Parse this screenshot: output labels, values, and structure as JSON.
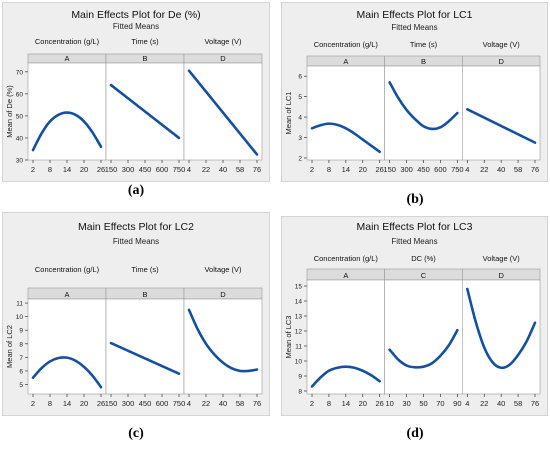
{
  "colors": {
    "background": "#eeeeee",
    "plot_bg": "#ffffff",
    "line": "#1550a0",
    "header": "#dcdcdc",
    "frame": "#bbbbbb"
  },
  "panel_labels": [
    "(a)",
    "(b)",
    "(c)",
    "(d)"
  ],
  "chart_data": [
    {
      "type": "line",
      "title": "Main Effects Plot for De (%)",
      "subtitle": "Fitted Means",
      "ylabel": "Mean of De (%)",
      "ylim": [
        30,
        74
      ],
      "yticks": [
        30,
        40,
        50,
        60,
        70
      ],
      "factors": [
        {
          "name": "Concentration (g/L)",
          "letter": "A",
          "xlim": [
            2,
            26
          ],
          "xticks": [
            "2",
            "8",
            "14",
            "20",
            "26"
          ],
          "x": [
            2,
            5,
            8,
            11,
            14,
            17,
            20,
            23,
            26
          ],
          "y": [
            34.5,
            42,
            47.5,
            50.5,
            51.5,
            50.5,
            47.5,
            42.5,
            36
          ]
        },
        {
          "name": "Time (s)",
          "letter": "B",
          "xlim": [
            150,
            750
          ],
          "xticks": [
            "150",
            "300",
            "450",
            "600",
            "750"
          ],
          "x": [
            150,
            750
          ],
          "y": [
            64,
            40
          ]
        },
        {
          "name": "Voltage (V)",
          "letter": "D",
          "xlim": [
            4,
            76
          ],
          "xticks": [
            "4",
            "22",
            "40",
            "58",
            "76"
          ],
          "x": [
            4,
            76
          ],
          "y": [
            70.5,
            32.5
          ]
        }
      ]
    },
    {
      "type": "line",
      "title": "Main Effects Plot for LC1",
      "subtitle": "Fitted Means",
      "ylabel": "Mean of LC1",
      "ylim": [
        1.9,
        6.5
      ],
      "yticks": [
        2,
        3,
        4,
        5,
        6
      ],
      "factors": [
        {
          "name": "Concentration (g/L)",
          "letter": "A",
          "xlim": [
            2,
            26
          ],
          "xticks": [
            "2",
            "8",
            "14",
            "20",
            "26"
          ],
          "x": [
            2,
            5,
            8,
            11,
            14,
            17,
            20,
            23,
            26
          ],
          "y": [
            3.45,
            3.6,
            3.68,
            3.62,
            3.45,
            3.2,
            2.9,
            2.6,
            2.3
          ]
        },
        {
          "name": "Time (s)",
          "letter": "B",
          "xlim": [
            150,
            750
          ],
          "xticks": [
            "150",
            "300",
            "450",
            "600",
            "750"
          ],
          "x": [
            150,
            225,
            300,
            375,
            450,
            525,
            600,
            675,
            750
          ],
          "y": [
            5.7,
            4.95,
            4.35,
            3.9,
            3.55,
            3.42,
            3.5,
            3.8,
            4.2
          ]
        },
        {
          "name": "Voltage (V)",
          "letter": "D",
          "xlim": [
            4,
            76
          ],
          "xticks": [
            "4",
            "22",
            "40",
            "58",
            "76"
          ],
          "x": [
            4,
            76
          ],
          "y": [
            4.38,
            2.75
          ]
        }
      ]
    },
    {
      "type": "line",
      "title": "Main Effects Plot for LC2",
      "subtitle": "Fitted Means",
      "ylabel": "Mean of LC2",
      "ylim": [
        4.3,
        11.3
      ],
      "yticks": [
        5,
        6,
        7,
        8,
        9,
        10,
        11
      ],
      "factors": [
        {
          "name": "Concentration (g/L)",
          "letter": "A",
          "xlim": [
            2,
            26
          ],
          "xticks": [
            "2",
            "8",
            "14",
            "20",
            "26"
          ],
          "x": [
            2,
            5,
            8,
            11,
            14,
            17,
            20,
            23,
            26
          ],
          "y": [
            5.5,
            6.2,
            6.7,
            6.95,
            6.98,
            6.75,
            6.3,
            5.65,
            4.8
          ]
        },
        {
          "name": "Time (s)",
          "letter": "B",
          "xlim": [
            150,
            750
          ],
          "xticks": [
            "150",
            "300",
            "450",
            "600",
            "750"
          ],
          "x": [
            150,
            750
          ],
          "y": [
            8.05,
            5.8
          ]
        },
        {
          "name": "Voltage (V)",
          "letter": "D",
          "xlim": [
            4,
            76
          ],
          "xticks": [
            "4",
            "22",
            "40",
            "58",
            "76"
          ],
          "x": [
            4,
            13,
            22,
            31,
            40,
            49,
            58,
            67,
            76
          ],
          "y": [
            10.5,
            9.1,
            8.0,
            7.2,
            6.6,
            6.2,
            6.0,
            6.0,
            6.1
          ]
        }
      ]
    },
    {
      "type": "line",
      "title": "Main Effects Plot for LC3",
      "subtitle": "Fitted Means",
      "ylabel": "Mean of LC3",
      "ylim": [
        7.8,
        15.4
      ],
      "yticks": [
        8,
        9,
        10,
        11,
        12,
        13,
        14,
        15
      ],
      "factors": [
        {
          "name": "Concentration (g/L)",
          "letter": "A",
          "xlim": [
            2,
            26
          ],
          "xticks": [
            "2",
            "8",
            "14",
            "20",
            "26"
          ],
          "x": [
            2,
            5,
            8,
            11,
            14,
            17,
            20,
            23,
            26
          ],
          "y": [
            8.3,
            8.9,
            9.35,
            9.55,
            9.62,
            9.55,
            9.35,
            9.05,
            8.65
          ]
        },
        {
          "name": "DC (%)",
          "letter": "C",
          "xlim": [
            10,
            90
          ],
          "xticks": [
            "10",
            "30",
            "50",
            "70",
            "90"
          ],
          "x": [
            10,
            20,
            30,
            40,
            50,
            60,
            70,
            80,
            90
          ],
          "y": [
            10.75,
            10.1,
            9.7,
            9.58,
            9.62,
            9.85,
            10.35,
            11.05,
            12.05
          ]
        },
        {
          "name": "Voltage (V)",
          "letter": "D",
          "xlim": [
            4,
            76
          ],
          "xticks": [
            "4",
            "22",
            "40",
            "58",
            "76"
          ],
          "x": [
            4,
            13,
            22,
            31,
            40,
            49,
            58,
            67,
            76
          ],
          "y": [
            14.8,
            12.6,
            10.9,
            9.9,
            9.55,
            9.75,
            10.4,
            11.3,
            12.55
          ]
        }
      ]
    }
  ]
}
